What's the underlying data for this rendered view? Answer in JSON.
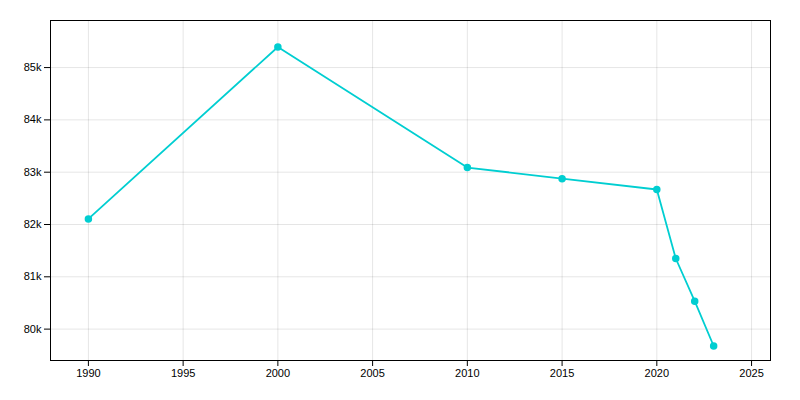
{
  "chart_data": {
    "type": "line",
    "x": [
      1990,
      2000,
      2010,
      2015,
      2020,
      2021,
      2022,
      2023
    ],
    "values": [
      82106,
      85394,
      83089,
      82877,
      82669,
      81350,
      80534,
      79677
    ],
    "color": "#00CED1",
    "marker": "o",
    "xlim": [
      1988,
      2026
    ],
    "ylim": [
      79400,
      85900
    ],
    "xticks": [
      1990,
      1995,
      2000,
      2005,
      2010,
      2015,
      2020,
      2025
    ],
    "yticks": [
      {
        "value": 80000,
        "label": "80k"
      },
      {
        "value": 81000,
        "label": "81k"
      },
      {
        "value": 82000,
        "label": "82k"
      },
      {
        "value": 83000,
        "label": "83k"
      },
      {
        "value": 84000,
        "label": "84k"
      },
      {
        "value": 85000,
        "label": "85k"
      }
    ],
    "grid": true
  }
}
